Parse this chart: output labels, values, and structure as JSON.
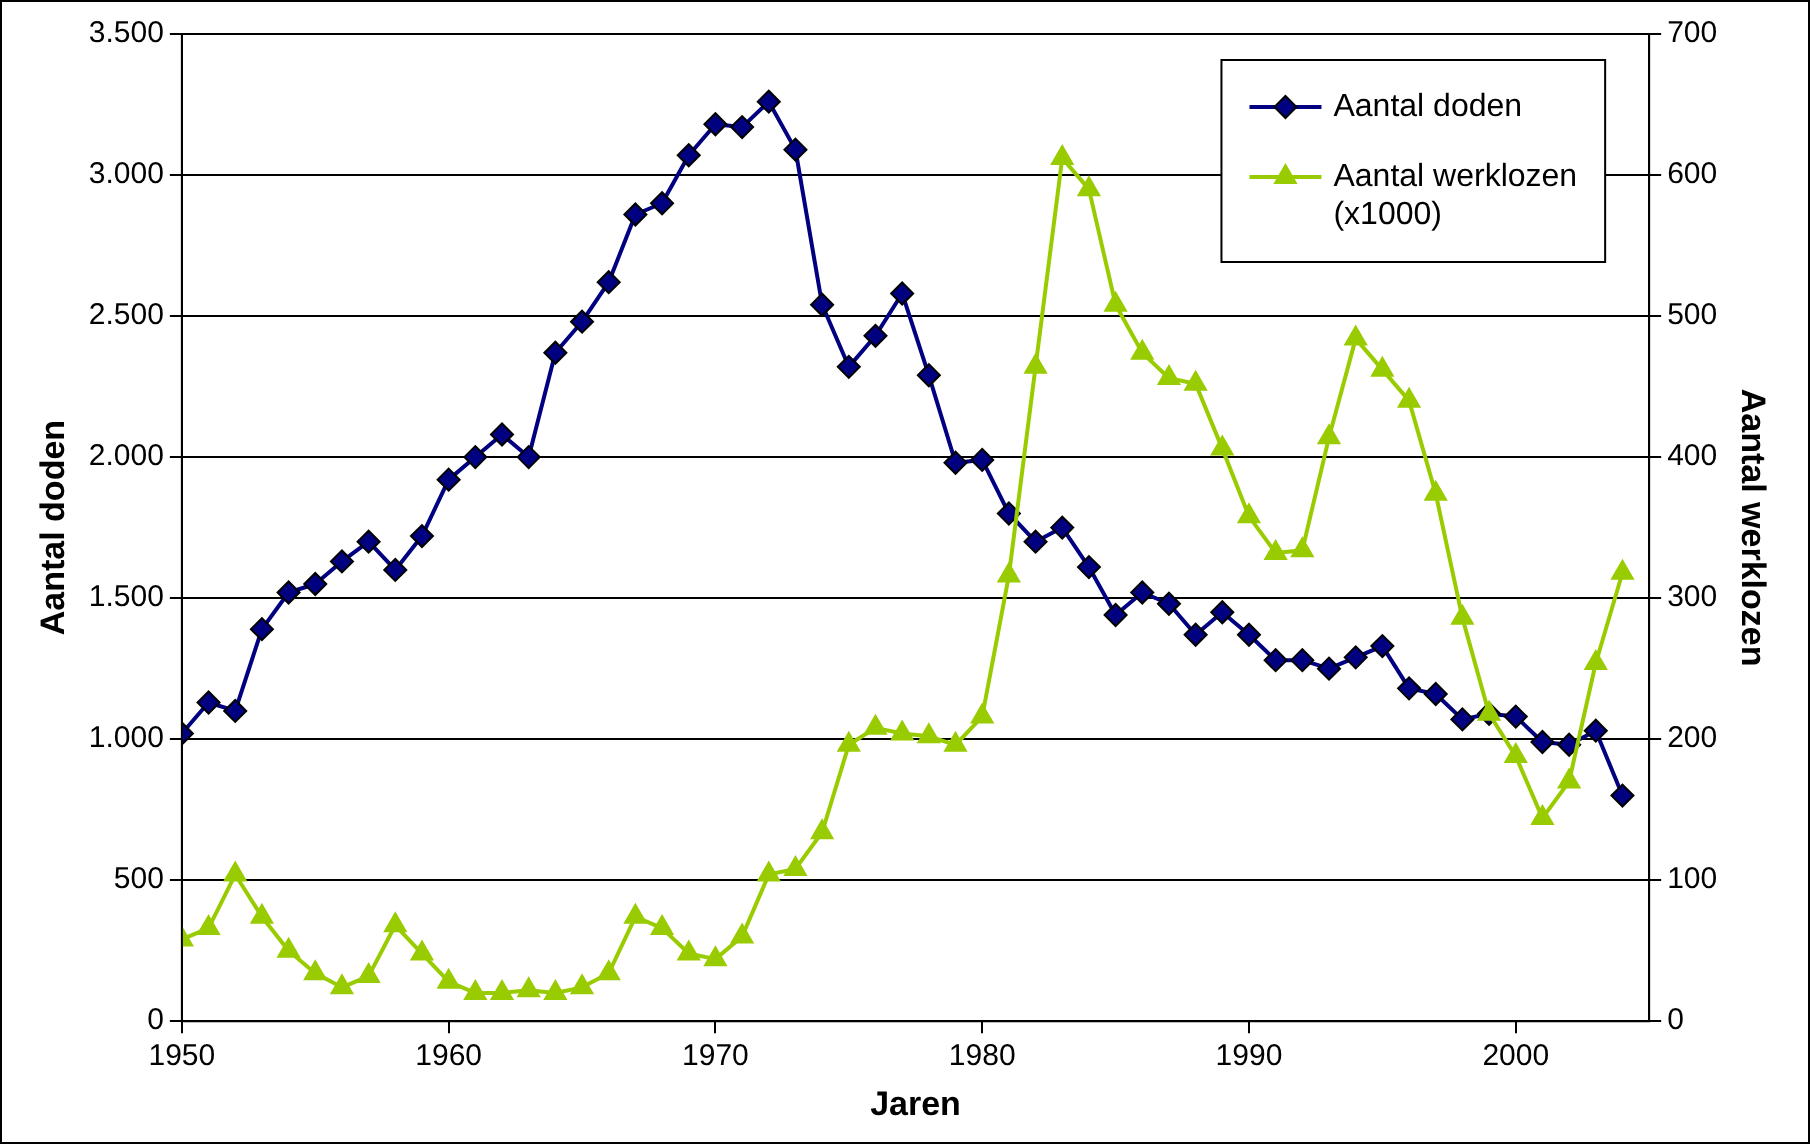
{
  "chart_data": {
    "type": "line",
    "xlabel": "Jaren",
    "ylabel": "Aantal doden",
    "y2label": "Aantal werklozen",
    "x": [
      1950,
      1951,
      1952,
      1953,
      1954,
      1955,
      1956,
      1957,
      1958,
      1959,
      1960,
      1961,
      1962,
      1963,
      1964,
      1965,
      1966,
      1967,
      1968,
      1969,
      1970,
      1971,
      1972,
      1973,
      1974,
      1975,
      1976,
      1977,
      1978,
      1979,
      1980,
      1981,
      1982,
      1983,
      1984,
      1985,
      1986,
      1987,
      1988,
      1989,
      1990,
      1991,
      1992,
      1993,
      1994,
      1995,
      1996,
      1997,
      1998,
      1999,
      2000,
      2001,
      2002,
      2003,
      2004
    ],
    "series": [
      {
        "name": "Aantal doden",
        "color": "#000080",
        "marker": "diamond",
        "values": [
          1020,
          1130,
          1100,
          1390,
          1520,
          1550,
          1630,
          1700,
          1600,
          1720,
          1920,
          2000,
          2080,
          2000,
          2370,
          2480,
          2620,
          2860,
          2900,
          3070,
          3180,
          3170,
          3260,
          3090,
          2540,
          2320,
          2430,
          2580,
          2290,
          1980,
          1990,
          1800,
          1700,
          1750,
          1610,
          1440,
          1520,
          1480,
          1370,
          1450,
          1370,
          1280,
          1280,
          1250,
          1290,
          1330,
          1180,
          1160,
          1070,
          1090,
          1080,
          990,
          980,
          1030,
          800
        ]
      },
      {
        "name": "Aantal werklozen (x1000)",
        "color": "#99cc00",
        "marker": "triangle",
        "axis": "y2",
        "values": [
          58,
          66,
          104,
          74,
          50,
          34,
          24,
          32,
          68,
          48,
          28,
          20,
          20,
          22,
          20,
          24,
          34,
          74,
          66,
          48,
          44,
          60,
          104,
          108,
          134,
          196,
          208,
          204,
          202,
          196,
          216,
          316,
          464,
          612,
          590,
          508,
          474,
          456,
          452,
          406,
          358,
          332,
          334,
          414,
          484,
          462,
          440,
          374,
          286,
          218,
          188,
          144,
          170,
          254,
          318
        ]
      }
    ],
    "xlim": [
      1950,
      2005
    ],
    "xticks": [
      1950,
      1960,
      1970,
      1980,
      1990,
      2000
    ],
    "ylim": [
      0,
      3500
    ],
    "yticks": [
      0,
      {
        "value": 500,
        "label": "500"
      },
      {
        "value": 1000,
        "label": "1.000"
      },
      {
        "value": 1500,
        "label": "1.500"
      },
      {
        "value": 2000,
        "label": "2.000"
      },
      {
        "value": 2500,
        "label": "2.500"
      },
      {
        "value": 3000,
        "label": "3.000"
      },
      {
        "value": 3500,
        "label": "3.500"
      }
    ],
    "y2lim": [
      0,
      700
    ],
    "y2ticks": [
      0,
      100,
      200,
      300,
      400,
      500,
      600,
      700
    ],
    "grid": "y",
    "legend": "top right",
    "line_style": "solid"
  }
}
